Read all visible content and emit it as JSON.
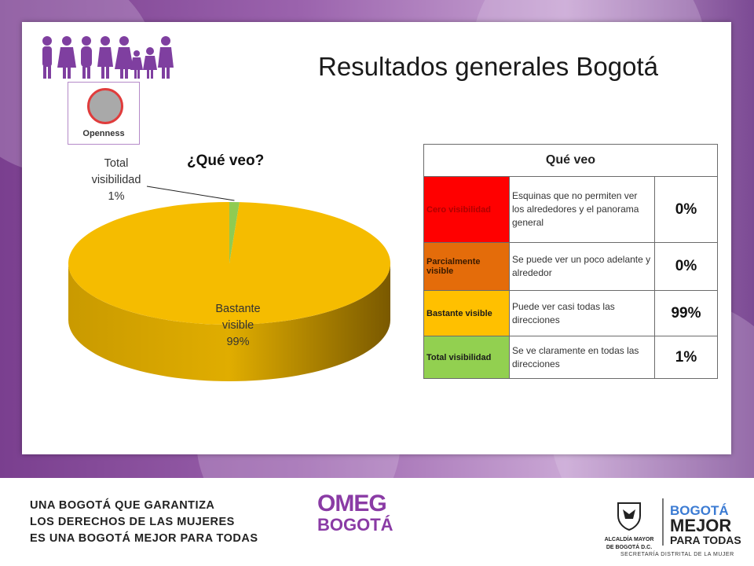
{
  "header": {
    "title": "Resultados generales Bogotá",
    "badge_label": "Openness"
  },
  "chart": {
    "title": "¿Qué veo?"
  },
  "chart_data": {
    "type": "pie",
    "title": "¿Qué veo?",
    "slices": [
      {
        "label": "Bastante visible",
        "value": 99,
        "display": "99%",
        "color": "#f5bc00"
      },
      {
        "label": "Total visibilidad",
        "value": 1,
        "display": "1%",
        "color": "#8fcb52"
      }
    ],
    "slice_labels": [
      {
        "line1": "Bastante",
        "line2": "visible",
        "line3": "99%"
      },
      {
        "line1": "Total",
        "line2": "visibilidad",
        "line3": "1%"
      }
    ]
  },
  "table": {
    "header": "Qué veo",
    "rows": [
      {
        "category": "Cero visibilidad",
        "description": "Esquinas que no permiten ver los alrededores y el panorama general",
        "percent": "0%",
        "color": "#ff0000",
        "text_color": "#b00000"
      },
      {
        "category": "Parcialmente visible",
        "description": "Se puede ver un poco adelante y alrededor",
        "percent": "0%",
        "color": "#e46c0a",
        "text_color": "#3a1a00"
      },
      {
        "category": "Bastante visible",
        "description": "Puede ver casi todas las direcciones",
        "percent": "99%",
        "color": "#ffc000",
        "text_color": "#1a1a1a"
      },
      {
        "category": "Total visibilidad",
        "description": "Se ve claramente en todas las direcciones",
        "percent": "1%",
        "color": "#92d050",
        "text_color": "#1a1a1a"
      }
    ]
  },
  "footer": {
    "line1": "UNA BOGOTÁ QUE GARANTIZA",
    "line2": "LOS DERECHOS DE LAS MUJERES",
    "line3": "ES UNA BOGOTÁ MEJOR PARA TODAS",
    "omeg_line1": "OMEG",
    "omeg_line2": "BOGOTÁ",
    "alcaldia_line1": "ALCALDÍA MAYOR",
    "alcaldia_line2": "DE BOGOTÁ D.C.",
    "brand_line1": "BOGOTÁ",
    "brand_line2": "MEJOR",
    "brand_line3": "PARA TODAS",
    "secretaria": "SECRETARÍA DISTRITAL DE LA MUJER"
  },
  "colors": {
    "purple": "#8a3ba5",
    "pie_yellow": "#f5bc00",
    "pie_green": "#8fcb52"
  }
}
